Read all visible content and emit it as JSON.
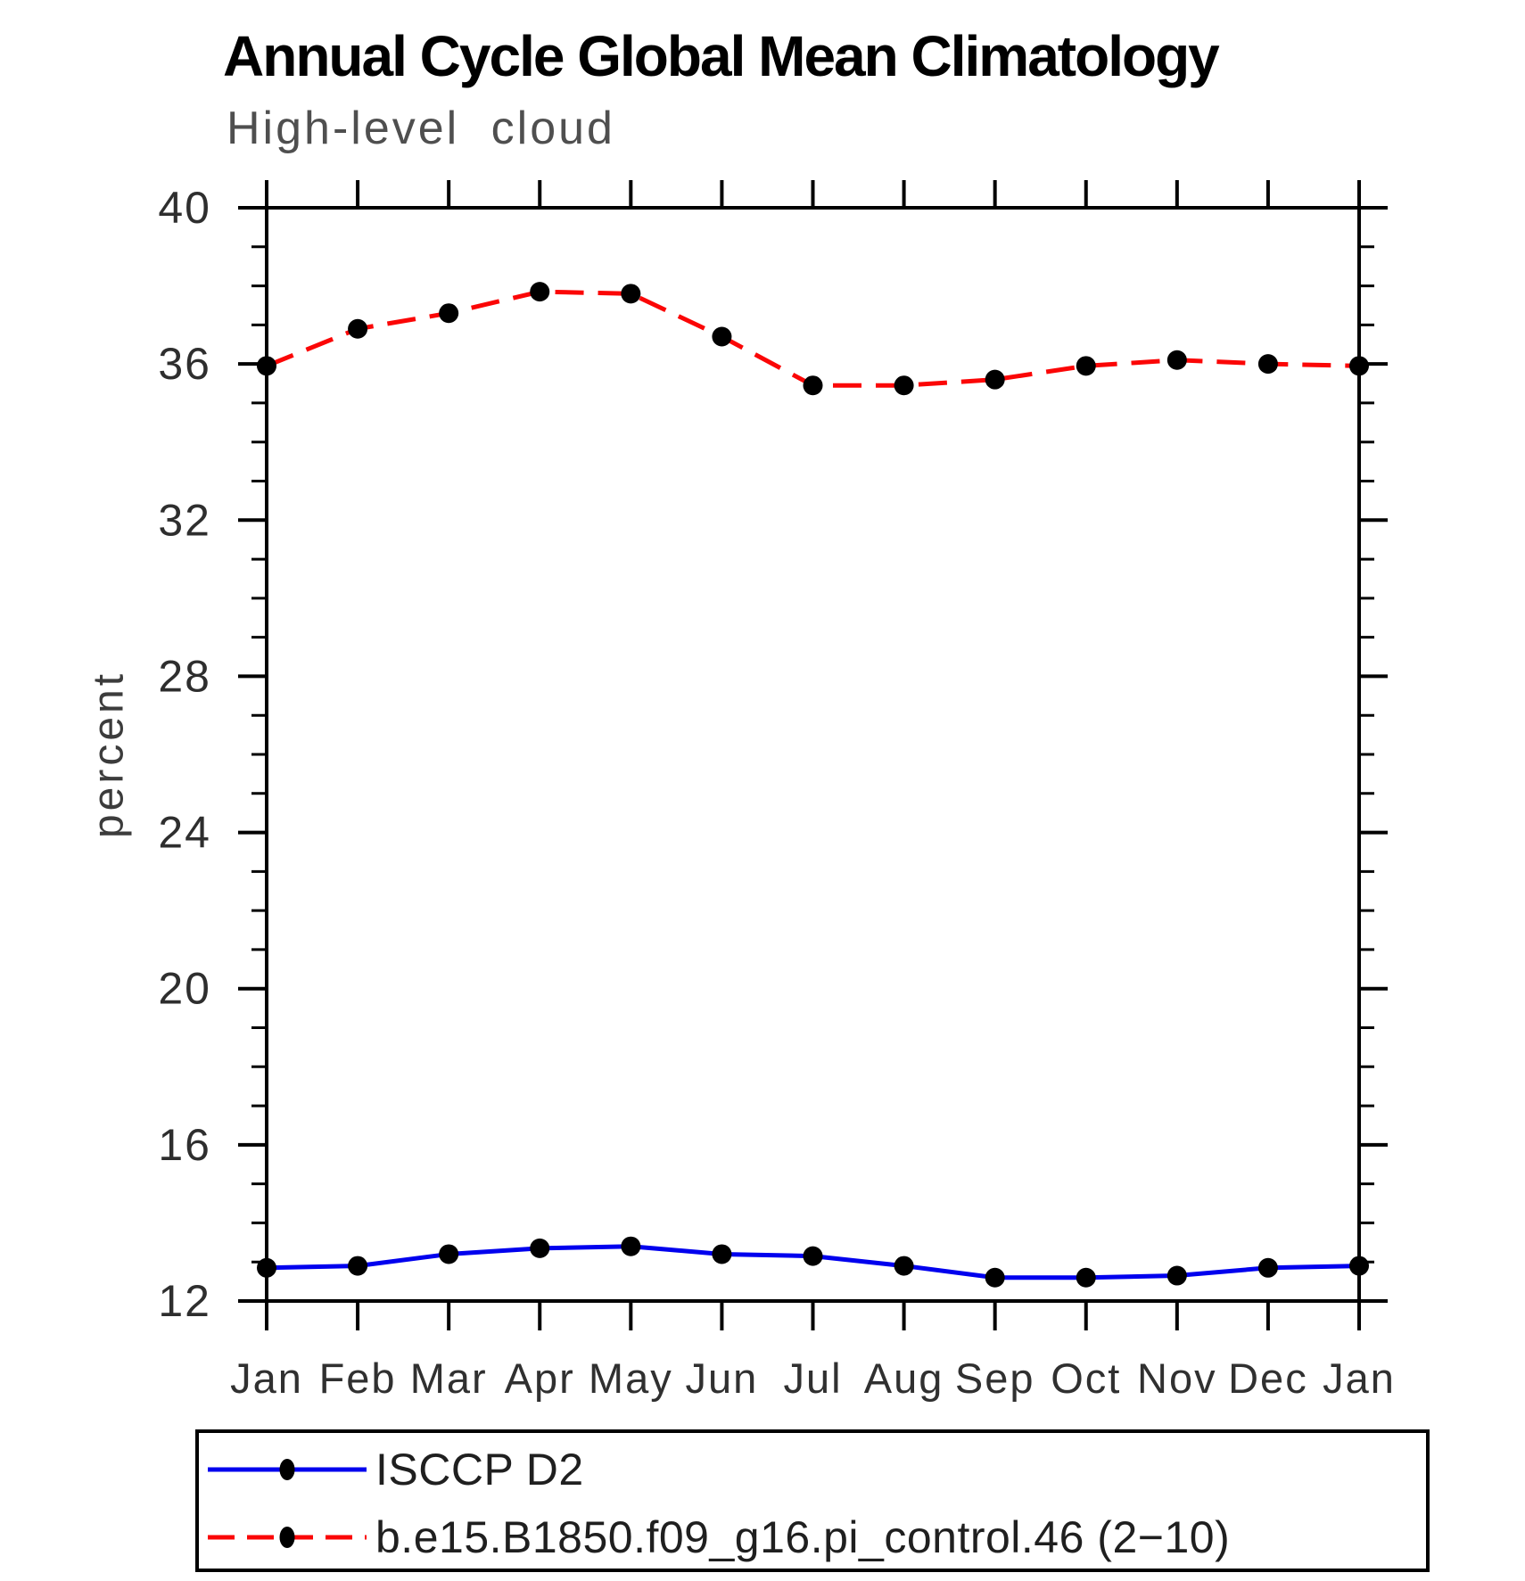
{
  "chart_data": {
    "type": "line",
    "title": "Annual Cycle Global Mean Climatology",
    "subtitle": "High-level cloud",
    "ylabel": "percent",
    "xlabel": "",
    "ylim": [
      12,
      40
    ],
    "ytick_major_step": 4,
    "ytick_minor_step": 1,
    "grid": false,
    "legend_position": "bottom",
    "categories": [
      "Jan",
      "Feb",
      "Mar",
      "Apr",
      "May",
      "Jun",
      "Jul",
      "Aug",
      "Sep",
      "Oct",
      "Nov",
      "Dec",
      "Jan"
    ],
    "series": [
      {
        "name": "ISCCP D2",
        "color": "#0000ee",
        "line_style": "solid",
        "marker": "filled-circle",
        "marker_color": "#000000",
        "values": [
          12.85,
          12.9,
          13.2,
          13.35,
          13.4,
          13.2,
          13.15,
          12.9,
          12.6,
          12.6,
          12.65,
          12.85,
          12.9
        ]
      },
      {
        "name": "b.e15.B1850.f09_g16.pi_control.46 (2−10)",
        "color": "#fb0606",
        "line_style": "dashed",
        "marker": "filled-circle",
        "marker_color": "#000000",
        "values": [
          35.95,
          36.9,
          37.3,
          37.85,
          37.8,
          36.7,
          35.45,
          35.45,
          35.6,
          35.95,
          36.1,
          36.0,
          35.95
        ]
      }
    ],
    "axis_color": "#000000"
  }
}
